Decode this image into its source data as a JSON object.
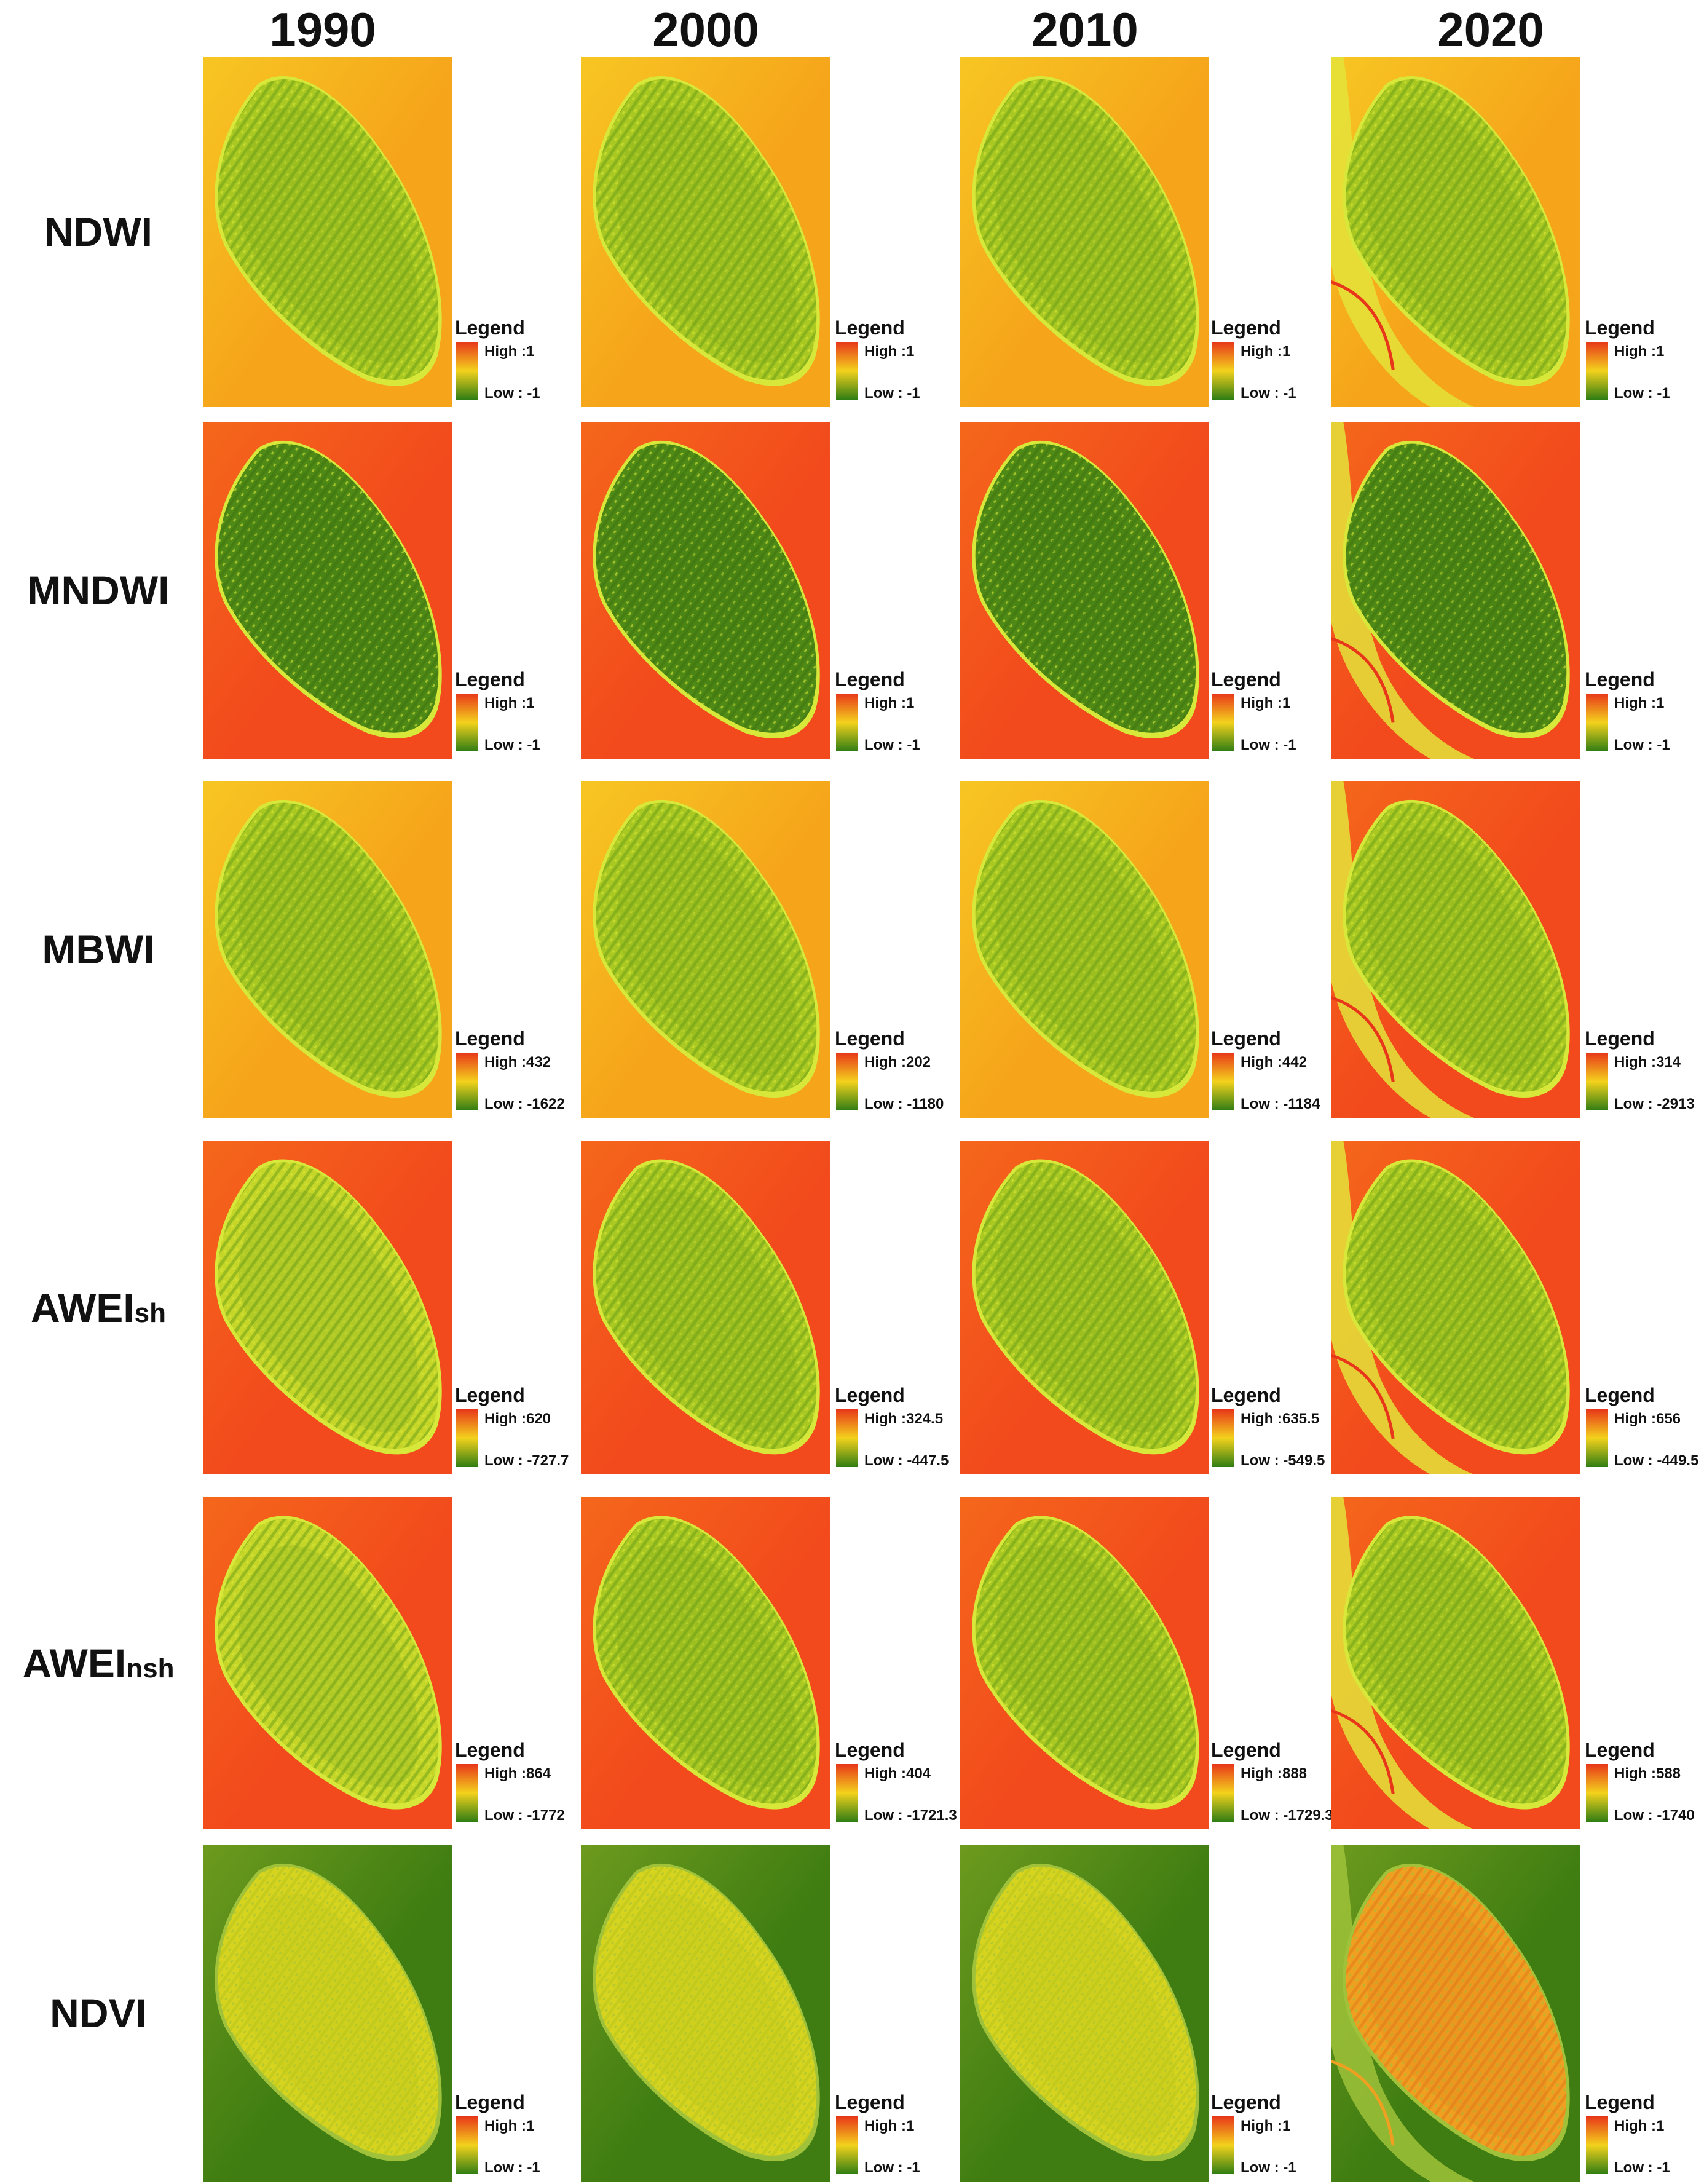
{
  "years": [
    "1990",
    "2000",
    "2010",
    "2020"
  ],
  "legend_title": "Legend",
  "rows": [
    {
      "main": "NDWI",
      "sub": "",
      "ramp": "water",
      "legends": [
        {
          "high": "High :1",
          "low": "Low : -1"
        },
        {
          "high": "High :1",
          "low": "Low : -1"
        },
        {
          "high": "High :1",
          "low": "Low : -1"
        },
        {
          "high": "High :1",
          "low": "Low : -1"
        }
      ]
    },
    {
      "main": "MNDWI",
      "sub": "",
      "ramp": "water",
      "legends": [
        {
          "high": "High :1",
          "low": "Low : -1"
        },
        {
          "high": "High :1",
          "low": "Low : -1"
        },
        {
          "high": "High :1",
          "low": "Low : -1"
        },
        {
          "high": "High :1",
          "low": "Low : -1"
        }
      ]
    },
    {
      "main": "MBWI",
      "sub": "",
      "ramp": "water",
      "legends": [
        {
          "high": "High :432",
          "low": "Low : -1622"
        },
        {
          "high": "High :202",
          "low": "Low : -1180"
        },
        {
          "high": "High :442",
          "low": "Low : -1184"
        },
        {
          "high": "High :314",
          "low": "Low : -2913"
        }
      ]
    },
    {
      "main": "AWEI",
      "sub": "sh",
      "ramp": "water",
      "legends": [
        {
          "high": "High :620",
          "low": "Low : -727.7"
        },
        {
          "high": "High :324.5",
          "low": "Low : -447.5"
        },
        {
          "high": "High :635.5",
          "low": "Low : -549.5"
        },
        {
          "high": "High :656",
          "low": "Low : -449.5"
        }
      ]
    },
    {
      "main": "AWEI",
      "sub": "nsh",
      "ramp": "water",
      "legends": [
        {
          "high": "High :864",
          "low": "Low : -1772"
        },
        {
          "high": "High :404",
          "low": "Low : -1721.3"
        },
        {
          "high": "High :888",
          "low": "Low : -1729.3"
        },
        {
          "high": "High :588",
          "low": "Low : -1740"
        }
      ]
    },
    {
      "main": "NDVI",
      "sub": "",
      "ramp": "veg",
      "legends": [
        {
          "high": "High :1",
          "low": "Low : -1"
        },
        {
          "high": "High :1",
          "low": "Low : -1"
        },
        {
          "high": "High :1",
          "low": "Low : -1"
        },
        {
          "high": "High :1",
          "low": "Low : -1"
        }
      ]
    }
  ],
  "colors": {
    "water_bg": "#f24a1c",
    "water_bg_light": "#f6a41a",
    "island_dark": "#4f8a16",
    "island_light": "#a9c821",
    "rim": "#d8e83a",
    "veg_bg": "#3f7d12",
    "veg_island": "#d6d41f",
    "veg_island_2020": "#f0a020",
    "legend_top": "#e8361a",
    "legend_mid": "#f3d21c",
    "legend_bottom": "#2f7d14"
  }
}
